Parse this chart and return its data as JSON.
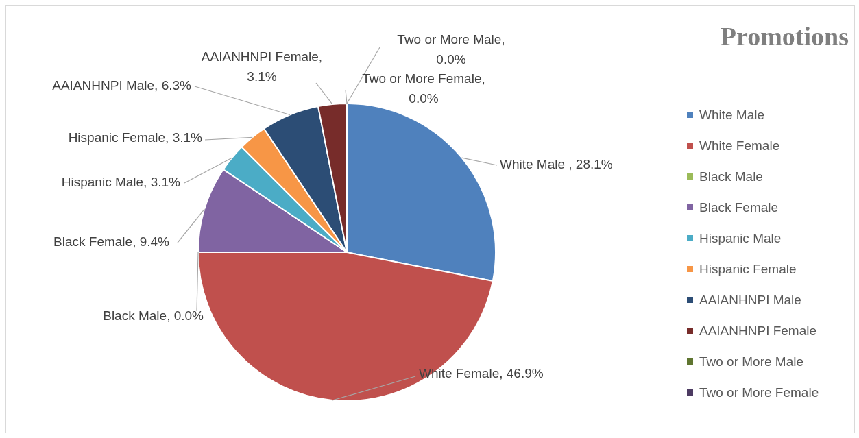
{
  "chart_data": {
    "type": "pie",
    "title": "Promotions",
    "categories": [
      "White Male",
      "White Female",
      "Black Male",
      "Black Female",
      "Hispanic Male",
      "Hispanic Female",
      "AAIANHNPI Male",
      "AAIANHNPI Female",
      "Two or More Male",
      "Two or More Female"
    ],
    "values": [
      28.1,
      46.9,
      0.0,
      9.4,
      3.1,
      3.1,
      6.3,
      3.1,
      0.0,
      0.0
    ],
    "colors": [
      "#4f81bd",
      "#c0504d",
      "#9bbb59",
      "#8064a2",
      "#4bacc6",
      "#f79646",
      "#2c4d75",
      "#772c2a",
      "#5f7530",
      "#4d3b62"
    ],
    "value_labels": [
      "White Male , 28.1%",
      "White Female, 46.9%",
      "Black Male, 0.0%",
      "Black Female, 9.4%",
      "Hispanic Male, 3.1%",
      "Hispanic Female, 3.1%",
      "AAIANHNPI Male, 6.3%",
      "AAIANHNPI Female, 3.1%",
      "Two or More Male, 0.0%",
      "Two or More Female, 0.0%"
    ],
    "legend": "right"
  }
}
